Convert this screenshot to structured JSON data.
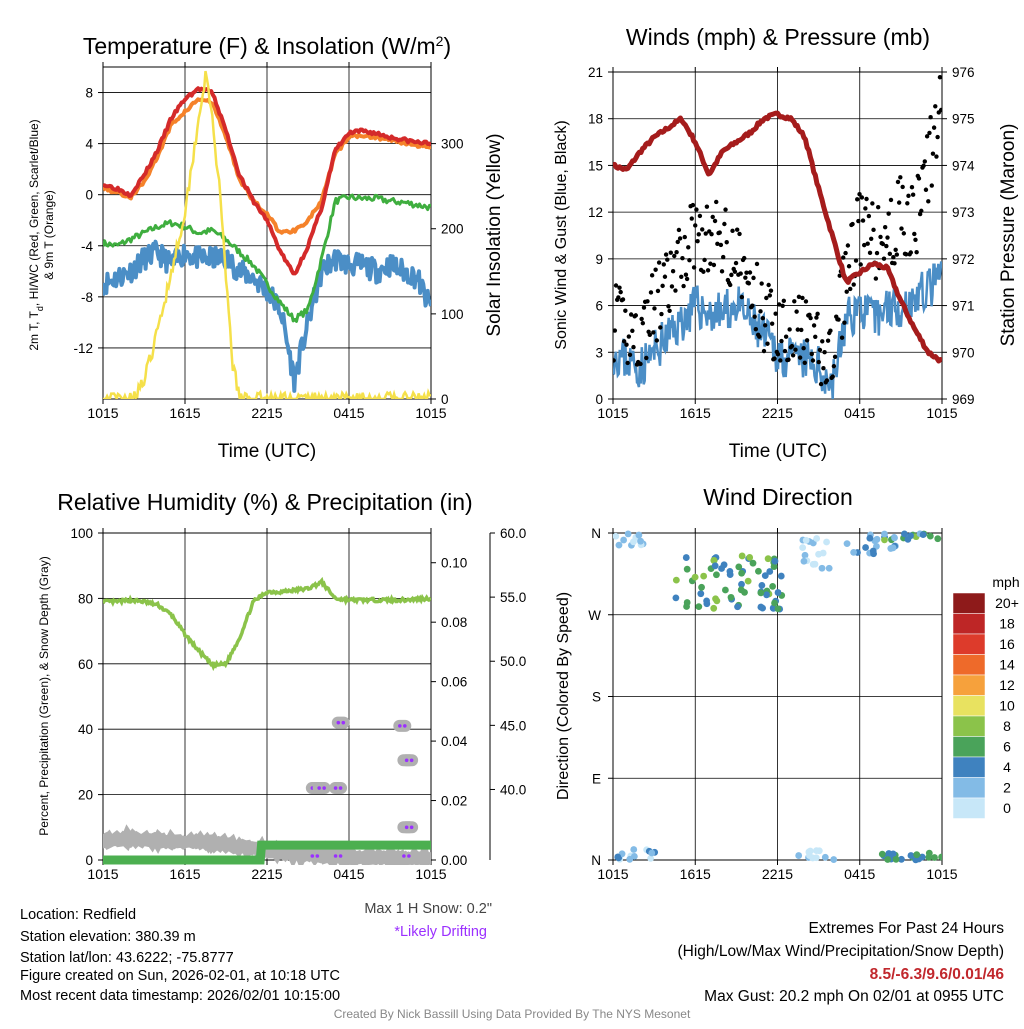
{
  "charts": {
    "temp": {
      "title": "Temperature (F) & Insolation (W/m",
      "title_sup": "2",
      "title_end": ")",
      "xlabel": "Time (UTC)",
      "ylabel_left_1": "2m T, T",
      "ylabel_left_sub": "d",
      "ylabel_left_2": ", HI/WC (Red, Green, Scarlet/Blue)",
      "ylabel_left_3": "& 9m T (Orange)",
      "ylabel_right": "Solar Insolation (Yellow)"
    },
    "wind": {
      "title": "Winds (mph) & Pressure (mb)",
      "xlabel": "Time (UTC)",
      "ylabel_left": "Sonic Wind & Gust (Blue, Black)",
      "ylabel_right": "Station Pressure (Maroon)"
    },
    "rh": {
      "title": "Relative Humidity (%) & Precipitation (in)",
      "ylabel_left": "Percent, Precipitation (Green), & Snow Depth (Gray)",
      "snow_note": "Max 1 H Snow: 0.2\"",
      "drift_note": "*Likely Drifting"
    },
    "dir": {
      "title": "Wind Direction",
      "ylabel_left": "Direction (Colored By Speed)",
      "legend_title": "mph"
    }
  },
  "chart_data": [
    {
      "type": "line",
      "title": "Temperature (F) & Insolation (W/m2)",
      "xlabel": "Time (UTC)",
      "x_ticks": [
        "1015",
        "1615",
        "2215",
        "0415",
        "1015"
      ],
      "xlim_hours": [
        0,
        24
      ],
      "ylim_left": [
        -16,
        10
      ],
      "y_ticks_left": [
        "8",
        "4",
        "0",
        "-4",
        "-8",
        "-12"
      ],
      "ylim_right": [
        0,
        390
      ],
      "y_ticks_right": [
        "0",
        "100",
        "200",
        "300"
      ],
      "series": [
        {
          "name": "2m T",
          "color": "#d42a2a",
          "axis": "left",
          "x": [
            0,
            1,
            2,
            3,
            4,
            5,
            6,
            7,
            8,
            9,
            10,
            11,
            12,
            13,
            14,
            15,
            16,
            17,
            18,
            19,
            20,
            21,
            22,
            23,
            24
          ],
          "values": [
            0.8,
            0.5,
            0,
            1.5,
            3.5,
            6,
            7.5,
            8.3,
            8,
            5,
            1.5,
            -0.5,
            -2,
            -4.5,
            -6.3,
            -4,
            -1,
            3.5,
            4.8,
            5,
            4.8,
            4.5,
            4.3,
            4.1,
            4
          ]
        },
        {
          "name": "9m T",
          "color": "#f5822a",
          "axis": "left",
          "x": [
            0,
            1,
            2,
            3,
            4,
            5,
            6,
            7,
            8,
            9,
            10,
            11,
            12,
            13,
            14,
            15,
            16,
            17,
            18,
            19,
            20,
            21,
            22,
            23,
            24
          ],
          "values": [
            0.5,
            0.2,
            -0.2,
            1,
            3,
            5.5,
            6.5,
            7.5,
            7.2,
            4.5,
            1.2,
            -0.5,
            -1.5,
            -3,
            -2.8,
            -2,
            -0.5,
            3.2,
            4.5,
            4.7,
            4.5,
            4.3,
            4.1,
            3.9,
            3.8
          ]
        },
        {
          "name": "Td",
          "color": "#3fae3f",
          "axis": "left",
          "x": [
            0,
            1,
            2,
            3,
            4,
            5,
            6,
            7,
            8,
            9,
            10,
            11,
            12,
            13,
            14,
            15,
            16,
            17,
            18,
            19,
            20,
            21,
            22,
            23,
            24
          ],
          "values": [
            -3.8,
            -4,
            -3.5,
            -3,
            -2.5,
            -2.2,
            -2.5,
            -3,
            -2.8,
            -3.5,
            -4.5,
            -5.5,
            -7,
            -8.5,
            -9.8,
            -9,
            -5,
            -0.5,
            -0.2,
            -0.3,
            -0.3,
            -0.5,
            -0.6,
            -0.8,
            -1
          ]
        },
        {
          "name": "HI/WC",
          "color": "#4b8ec6",
          "axis": "left",
          "x": [
            0,
            1,
            2,
            3,
            4,
            5,
            6,
            7,
            8,
            9,
            10,
            11,
            12,
            13,
            14,
            15,
            16,
            17,
            18,
            19,
            20,
            21,
            22,
            23,
            24
          ],
          "values": [
            -7,
            -6.5,
            -6,
            -5,
            -4.5,
            -5.5,
            -4.5,
            -5,
            -5,
            -5,
            -6,
            -6.5,
            -7.5,
            -9,
            -14.5,
            -10,
            -6,
            -5,
            -5.5,
            -5.5,
            -6,
            -5.5,
            -6,
            -6.5,
            -9
          ]
        },
        {
          "name": "Solar Insolation",
          "color": "#f5e04a",
          "axis": "right",
          "x": [
            0,
            1,
            2,
            3,
            4,
            5,
            6,
            7,
            7.5,
            8,
            8.5,
            9,
            9.5,
            10,
            11,
            12,
            13,
            14,
            15,
            16,
            17,
            18,
            19,
            20,
            21,
            22,
            23,
            24
          ],
          "values": [
            0,
            0,
            0,
            20,
            80,
            150,
            220,
            330,
            380,
            330,
            250,
            140,
            40,
            0,
            0,
            0,
            0,
            0,
            0,
            0,
            0,
            0,
            0,
            0,
            0,
            0,
            0,
            0
          ]
        }
      ]
    },
    {
      "type": "line",
      "title": "Winds (mph) & Pressure (mb)",
      "xlabel": "Time (UTC)",
      "x_ticks": [
        "1015",
        "1615",
        "2215",
        "0415",
        "1015"
      ],
      "xlim_hours": [
        0,
        24
      ],
      "ylim_left": [
        0,
        21
      ],
      "y_ticks_left": [
        "0",
        "3",
        "6",
        "9",
        "12",
        "15",
        "18",
        "21"
      ],
      "ylim_right": [
        969,
        976
      ],
      "y_ticks_right": [
        "969",
        "970",
        "971",
        "972",
        "973",
        "974",
        "975",
        "976"
      ],
      "series": [
        {
          "name": "Sonic Wind",
          "color": "#4b8ec6",
          "axis": "left",
          "x": [
            0,
            1,
            2,
            3,
            4,
            5,
            6,
            7,
            8,
            9,
            10,
            11,
            12,
            13,
            14,
            15,
            16,
            17,
            18,
            19,
            20,
            21,
            22,
            23,
            24
          ],
          "values": [
            3,
            2.5,
            2,
            3,
            4,
            5,
            6,
            5.5,
            5.5,
            6,
            5,
            4,
            3,
            2.5,
            2.5,
            2,
            1,
            5,
            6,
            5,
            6,
            6,
            6.5,
            7,
            8
          ]
        },
        {
          "name": "Gust",
          "color": "#000000",
          "axis": "left",
          "type": "scatter",
          "x": [
            0,
            1,
            2,
            3,
            4,
            5,
            6,
            7,
            8,
            9,
            10,
            11,
            12,
            13,
            14,
            15,
            16,
            17,
            18,
            19,
            20,
            21,
            22,
            23,
            24
          ],
          "values": [
            5,
            4.5,
            4,
            6,
            7,
            9,
            11,
            10,
            10.5,
            9,
            7,
            5.5,
            4.5,
            5,
            4,
            3,
            2.5,
            8,
            11,
            10,
            10,
            12,
            11,
            15,
            19
          ]
        },
        {
          "name": "Station Pressure",
          "color": "#a51c1c",
          "axis": "right",
          "x": [
            0,
            1,
            2,
            3,
            4,
            5,
            6,
            7,
            8,
            9,
            10,
            11,
            12,
            13,
            14,
            15,
            16,
            17,
            18,
            19,
            20,
            21,
            22,
            23,
            24
          ],
          "values": [
            974,
            973.9,
            974.3,
            974.6,
            974.8,
            975,
            974.5,
            973.8,
            974.3,
            974.5,
            974.7,
            975,
            975.1,
            975,
            974.6,
            973.5,
            972.5,
            971.5,
            971.7,
            971.9,
            971.8,
            971.1,
            970.5,
            970,
            969.8
          ]
        }
      ]
    },
    {
      "type": "line",
      "title": "Relative Humidity (%) & Precipitation (in)",
      "x_ticks": [
        "1015",
        "1615",
        "2215",
        "0415",
        "1015"
      ],
      "xlim_hours": [
        0,
        24
      ],
      "ylim_left": [
        0,
        100
      ],
      "y_ticks_left": [
        "0",
        "20",
        "40",
        "60",
        "80",
        "100"
      ],
      "ylim_precip": [
        0,
        0.11
      ],
      "y_ticks_precip": [
        "0.00",
        "0.02",
        "0.04",
        "0.06",
        "0.08",
        "0.10"
      ],
      "ylim_snow": [
        34.5,
        60
      ],
      "y_ticks_snow": [
        "40.0",
        "45.0",
        "50.0",
        "55.0",
        "60.0"
      ],
      "series": [
        {
          "name": "Relative Humidity",
          "color": "#8bc34a",
          "axis": "left",
          "x": [
            0,
            1,
            2,
            3,
            4,
            5,
            6,
            7,
            8,
            9,
            10,
            11,
            12,
            13,
            14,
            15,
            16,
            17,
            18,
            19,
            20,
            21,
            22,
            23,
            24
          ],
          "values": [
            79,
            79,
            79.5,
            79,
            78,
            75,
            69,
            64,
            59.5,
            60,
            68,
            79,
            82,
            82,
            82.5,
            83,
            85,
            80,
            79.5,
            79.5,
            79.5,
            79.5,
            79.5,
            79.8,
            80
          ]
        },
        {
          "name": "Precipitation",
          "color": "#4caf50",
          "axis": "precip",
          "x": [
            0,
            11.5,
            11.6,
            24
          ],
          "values": [
            0,
            0,
            0.005,
            0.005
          ]
        },
        {
          "name": "Snow Depth",
          "color": "#b0b0b0",
          "axis": "left",
          "x": [
            0,
            2,
            4,
            6,
            8,
            10,
            12,
            14,
            16,
            18,
            20,
            22,
            24
          ],
          "values": [
            6,
            6.5,
            6,
            5.5,
            5.5,
            4,
            3,
            2,
            1.5,
            1,
            0.8,
            0.5,
            0.5
          ]
        },
        {
          "name": "Snow Depth Drift Points",
          "color": "#b0b0b0",
          "axis": "left",
          "type": "scatter",
          "x": [
            15.5,
            16,
            17.2,
            17.4,
            21.9,
            22.2,
            22.4,
            22.2,
            22.4
          ],
          "values": [
            22,
            22,
            22,
            42,
            41,
            30.5,
            30.5,
            10,
            10
          ]
        }
      ]
    },
    {
      "type": "scatter",
      "title": "Wind Direction",
      "x_ticks": [
        "1015",
        "1615",
        "2215",
        "0415",
        "1015"
      ],
      "y_ticks": [
        "N",
        "W",
        "S",
        "E",
        "N"
      ],
      "legend": [
        "20+",
        "18",
        "16",
        "14",
        "12",
        "10",
        "8",
        "6",
        "4",
        "2",
        "0"
      ],
      "legend_colors": [
        "#8e1a1a",
        "#be2626",
        "#dd3b2b",
        "#ee6a2a",
        "#f6a13c",
        "#e8e260",
        "#8bc34a",
        "#4aa35a",
        "#3f82bf",
        "#83bbe6",
        "#c7e7f8"
      ],
      "legend_unit": "mph"
    }
  ],
  "footer": {
    "location": "Location: Redfield",
    "elevation": "Station elevation: 380.39 m",
    "latlon": "Station lat/lon: 43.6222; -75.8777",
    "created": "Figure created on Sun, 2026-02-01, at 10:18 UTC",
    "recent": "Most recent data timestamp: 2026/02/01 10:15:00",
    "extremes_title": "Extremes For Past 24 Hours",
    "extremes_legend": "(High/Low/Max Wind/Precipitation/Snow Depth)",
    "extremes_values": "8.5/-6.3/9.6/0.01/46",
    "max_gust": "Max Gust: 20.2 mph On 02/01 at 0955 UTC",
    "credit": "Created By Nick Bassill Using Data Provided By The NYS Mesonet"
  },
  "colors": {
    "extremes": "#c1282d",
    "drift": "#9b30ff",
    "credit": "#888888"
  }
}
